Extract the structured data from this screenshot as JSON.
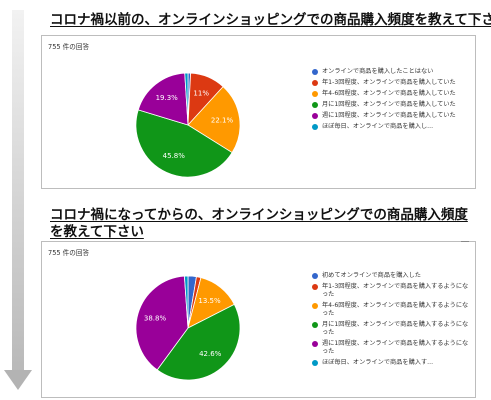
{
  "section1": {
    "heading": "コロナ禍以前の、オンラインショッピングでの商品購入頻度を教えて下さい",
    "count_label": "755 件の回答"
  },
  "section2": {
    "heading": "コロナ禍になってからの、オンラインショッピングでの商品購入頻度を教えて下さい",
    "count_label": "755 件の回答"
  },
  "chart_data": [
    {
      "type": "pie",
      "title": "コロナ禍以前の、オンラインショッピングでの商品購入頻度を教えて下さい",
      "start_angle_deg": 90,
      "direction": "clockwise",
      "legend_position": "right",
      "slices": [
        {
          "label": "オンラインで商品を購入したことはない",
          "value": 0.8,
          "color": "#3366cc",
          "show_label": false
        },
        {
          "label": "年1-3回程度、オンラインで商品を購入していた",
          "value": 11.0,
          "color": "#dc3912",
          "show_label": true,
          "display": "11%"
        },
        {
          "label": "年4-6回程度、オンラインで商品を購入していた",
          "value": 22.1,
          "color": "#ff9900",
          "show_label": true,
          "display": "22.1%"
        },
        {
          "label": "月に1回程度、オンラインで商品を購入していた",
          "value": 45.8,
          "color": "#109618",
          "show_label": true,
          "display": "45.8%"
        },
        {
          "label": "週に1回程度、オンラインで商品を購入していた",
          "value": 19.3,
          "color": "#990099",
          "show_label": true,
          "display": "19.3%"
        },
        {
          "label": "ほぼ毎日、オンラインで商品を購入し...",
          "value": 1.0,
          "color": "#0099c6",
          "show_label": false
        }
      ]
    },
    {
      "type": "pie",
      "title": "コロナ禍になってからの、オンラインショッピングでの商品購入頻度を教えて下さい",
      "start_angle_deg": 90,
      "direction": "clockwise",
      "legend_position": "right",
      "slices": [
        {
          "label": "初めてオンラインで商品を購入した",
          "value": 2.6,
          "color": "#3366cc",
          "show_label": false
        },
        {
          "label": "年1-3回程度、オンラインで商品を購入するようになった",
          "value": 1.4,
          "color": "#dc3912",
          "show_label": false
        },
        {
          "label": "年4-6回程度、オンラインで商品を購入するようになった",
          "value": 13.5,
          "color": "#ff9900",
          "show_label": true,
          "display": "13.5%"
        },
        {
          "label": "月に1回程度、オンラインで商品を購入するようになった",
          "value": 42.6,
          "color": "#109618",
          "show_label": true,
          "display": "42.6%"
        },
        {
          "label": "週に1回程度、オンラインで商品を購入するようになった",
          "value": 38.8,
          "color": "#990099",
          "show_label": true,
          "display": "38.8%"
        },
        {
          "label": "ほぼ毎日、オンラインで商品を購入す...",
          "value": 1.1,
          "color": "#0099c6",
          "show_label": false
        }
      ]
    }
  ]
}
